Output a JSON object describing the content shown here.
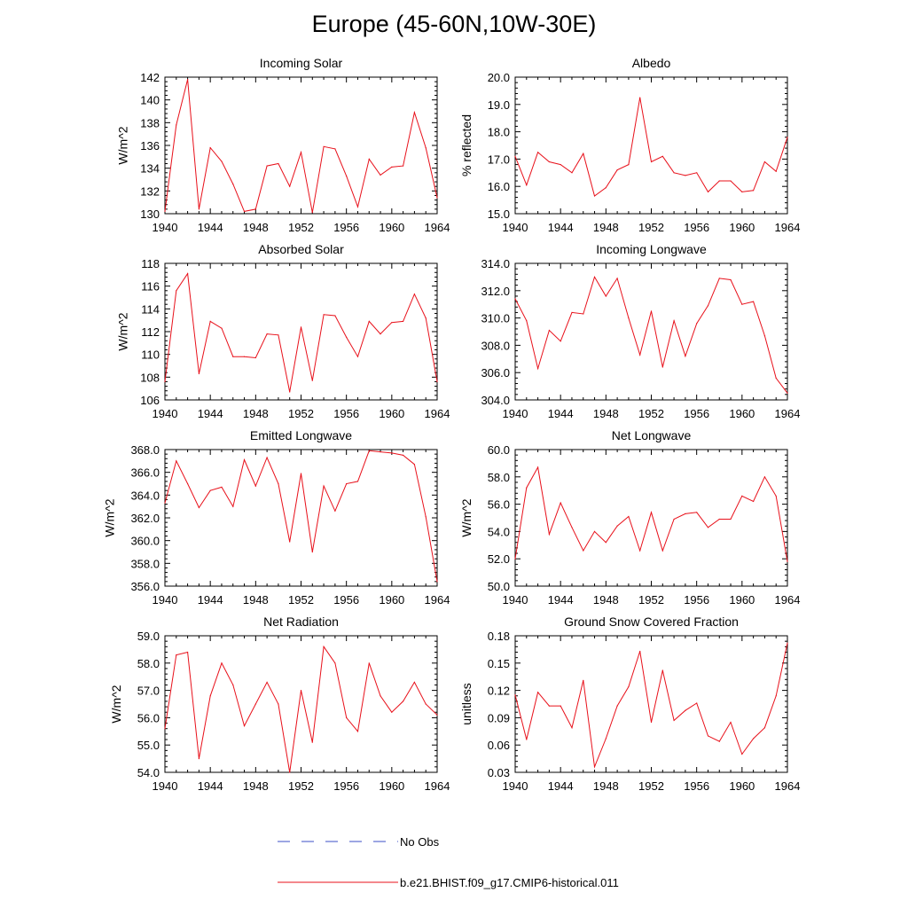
{
  "title": "Europe (45-60N,10W-30E)",
  "colors": {
    "model_line": "#e8101a",
    "obs_line": "#3b4fc7",
    "axis": "#000000"
  },
  "legend": {
    "obs_label": "No Obs",
    "model_label": "b.e21.BHIST.f09_g17.CMIP6-historical.011"
  },
  "chart_data": [
    {
      "type": "line",
      "title": "Incoming Solar",
      "ylabel": "W/m^2",
      "xlim": [
        1940,
        1964
      ],
      "ylim": [
        130,
        142
      ],
      "yticks": [
        130,
        132,
        134,
        136,
        138,
        140,
        142
      ],
      "ytick_labels": [
        "130",
        "132",
        "134",
        "136",
        "138",
        "140",
        "142"
      ],
      "xticks": [
        1940,
        1944,
        1948,
        1952,
        1956,
        1960,
        1964
      ],
      "xtick_labels": [
        "1940",
        "1944",
        "1948",
        "1952",
        "1956",
        "1960",
        "1964"
      ],
      "series": [
        {
          "x": [
            1940,
            1941,
            1942,
            1943,
            1944,
            1945,
            1946,
            1947,
            1948,
            1949,
            1950,
            1951,
            1952,
            1953,
            1954,
            1955,
            1956,
            1957,
            1958,
            1959,
            1960,
            1961,
            1962,
            1963,
            1964
          ],
          "y": [
            130.2,
            137.8,
            141.8,
            130.4,
            135.8,
            134.6,
            132.6,
            130.2,
            130.4,
            134.2,
            134.4,
            132.4,
            135.4,
            130.1,
            135.9,
            135.7,
            133.3,
            130.6,
            134.8,
            133.4,
            134.1,
            134.2,
            138.9,
            135.8,
            131.4
          ]
        }
      ]
    },
    {
      "type": "line",
      "title": "Albedo",
      "ylabel": "% reflected",
      "xlim": [
        1940,
        1964
      ],
      "ylim": [
        15,
        20
      ],
      "yticks": [
        15,
        16,
        17,
        18,
        19,
        20
      ],
      "ytick_labels": [
        "15.0",
        "16.0",
        "17.0",
        "18.0",
        "19.0",
        "20.0"
      ],
      "xticks": [
        1940,
        1944,
        1948,
        1952,
        1956,
        1960,
        1964
      ],
      "xtick_labels": [
        "1940",
        "1944",
        "1948",
        "1952",
        "1956",
        "1960",
        "1964"
      ],
      "series": [
        {
          "x": [
            1940,
            1941,
            1942,
            1943,
            1944,
            1945,
            1946,
            1947,
            1948,
            1949,
            1950,
            1951,
            1952,
            1953,
            1954,
            1955,
            1956,
            1957,
            1958,
            1959,
            1960,
            1961,
            1962,
            1963,
            1964
          ],
          "y": [
            17.1,
            16.05,
            17.25,
            16.9,
            16.8,
            16.5,
            17.2,
            15.65,
            15.95,
            16.6,
            16.8,
            19.25,
            16.9,
            17.1,
            16.5,
            16.4,
            16.5,
            15.8,
            16.2,
            16.2,
            15.8,
            15.85,
            16.9,
            16.55,
            17.8
          ]
        }
      ]
    },
    {
      "type": "line",
      "title": "Absorbed Solar",
      "ylabel": "W/m^2",
      "xlim": [
        1940,
        1964
      ],
      "ylim": [
        106,
        118
      ],
      "yticks": [
        106,
        108,
        110,
        112,
        114,
        116,
        118
      ],
      "ytick_labels": [
        "106",
        "108",
        "110",
        "112",
        "114",
        "116",
        "118"
      ],
      "xticks": [
        1940,
        1944,
        1948,
        1952,
        1956,
        1960,
        1964
      ],
      "xtick_labels": [
        "1940",
        "1944",
        "1948",
        "1952",
        "1956",
        "1960",
        "1964"
      ],
      "series": [
        {
          "x": [
            1940,
            1941,
            1942,
            1943,
            1944,
            1945,
            1946,
            1947,
            1948,
            1949,
            1950,
            1951,
            1952,
            1953,
            1954,
            1955,
            1956,
            1957,
            1958,
            1959,
            1960,
            1961,
            1962,
            1963,
            1964
          ],
          "y": [
            107.6,
            115.6,
            117.1,
            108.3,
            112.9,
            112.3,
            109.8,
            109.8,
            109.7,
            111.8,
            111.7,
            106.7,
            112.4,
            107.7,
            113.5,
            113.4,
            111.5,
            109.8,
            112.9,
            111.8,
            112.8,
            112.9,
            115.3,
            113.2,
            107.6
          ]
        }
      ]
    },
    {
      "type": "line",
      "title": "Incoming Longwave",
      "ylabel": "",
      "xlim": [
        1940,
        1964
      ],
      "ylim": [
        304,
        314
      ],
      "yticks": [
        304,
        306,
        308,
        310,
        312,
        314
      ],
      "ytick_labels": [
        "304.0",
        "306.0",
        "308.0",
        "310.0",
        "312.0",
        "314.0"
      ],
      "xticks": [
        1940,
        1944,
        1948,
        1952,
        1956,
        1960,
        1964
      ],
      "xtick_labels": [
        "1940",
        "1944",
        "1948",
        "1952",
        "1956",
        "1960",
        "1964"
      ],
      "series": [
        {
          "x": [
            1940,
            1941,
            1942,
            1943,
            1944,
            1945,
            1946,
            1947,
            1948,
            1949,
            1950,
            1951,
            1952,
            1953,
            1954,
            1955,
            1956,
            1957,
            1958,
            1959,
            1960,
            1961,
            1962,
            1963,
            1964
          ],
          "y": [
            311.4,
            309.8,
            306.3,
            309.1,
            308.3,
            310.4,
            310.3,
            313.0,
            311.6,
            312.9,
            310.0,
            307.3,
            310.5,
            306.4,
            309.8,
            307.2,
            309.6,
            310.9,
            312.9,
            312.8,
            311.0,
            311.2,
            308.7,
            305.6,
            304.5
          ]
        }
      ]
    },
    {
      "type": "line",
      "title": "Emitted Longwave",
      "ylabel": "W/m^2",
      "xlim": [
        1940,
        1964
      ],
      "ylim": [
        356,
        368
      ],
      "yticks": [
        356,
        358,
        360,
        362,
        364,
        366,
        368
      ],
      "ytick_labels": [
        "356.0",
        "358.0",
        "360.0",
        "362.0",
        "364.0",
        "366.0",
        "368.0"
      ],
      "xticks": [
        1940,
        1944,
        1948,
        1952,
        1956,
        1960,
        1964
      ],
      "xtick_labels": [
        "1940",
        "1944",
        "1948",
        "1952",
        "1956",
        "1960",
        "1964"
      ],
      "series": [
        {
          "x": [
            1940,
            1941,
            1942,
            1943,
            1944,
            1945,
            1946,
            1947,
            1948,
            1949,
            1950,
            1951,
            1952,
            1953,
            1954,
            1955,
            1956,
            1957,
            1958,
            1959,
            1960,
            1961,
            1962,
            1963,
            1964
          ],
          "y": [
            363.3,
            367.0,
            365.0,
            362.9,
            364.4,
            364.7,
            363.0,
            367.1,
            364.8,
            367.3,
            365.0,
            359.9,
            365.9,
            359.0,
            364.8,
            362.6,
            365.0,
            365.2,
            367.9,
            367.8,
            367.7,
            367.5,
            366.7,
            362.1,
            356.4
          ]
        }
      ]
    },
    {
      "type": "line",
      "title": "Net Longwave",
      "ylabel": "W/m^2",
      "xlim": [
        1940,
        1964
      ],
      "ylim": [
        50,
        60
      ],
      "yticks": [
        50,
        52,
        54,
        56,
        58,
        60
      ],
      "ytick_labels": [
        "50.0",
        "52.0",
        "54.0",
        "56.0",
        "58.0",
        "60.0"
      ],
      "xticks": [
        1940,
        1944,
        1948,
        1952,
        1956,
        1960,
        1964
      ],
      "xtick_labels": [
        "1940",
        "1944",
        "1948",
        "1952",
        "1956",
        "1960",
        "1964"
      ],
      "series": [
        {
          "x": [
            1940,
            1941,
            1942,
            1943,
            1944,
            1945,
            1946,
            1947,
            1948,
            1949,
            1950,
            1951,
            1952,
            1953,
            1954,
            1955,
            1956,
            1957,
            1958,
            1959,
            1960,
            1961,
            1962,
            1963,
            1964
          ],
          "y": [
            52.0,
            57.2,
            58.7,
            53.8,
            56.1,
            54.3,
            52.6,
            54.0,
            53.2,
            54.4,
            55.1,
            52.6,
            55.4,
            52.6,
            54.9,
            55.3,
            55.4,
            54.3,
            54.9,
            54.9,
            56.6,
            56.2,
            58.0,
            56.6,
            51.8
          ]
        }
      ]
    },
    {
      "type": "line",
      "title": "Net Radiation",
      "ylabel": "W/m^2",
      "xlim": [
        1940,
        1964
      ],
      "ylim": [
        54,
        59
      ],
      "yticks": [
        54,
        55,
        56,
        57,
        58,
        59
      ],
      "ytick_labels": [
        "54.0",
        "55.0",
        "56.0",
        "57.0",
        "58.0",
        "59.0"
      ],
      "xticks": [
        1940,
        1944,
        1948,
        1952,
        1956,
        1960,
        1964
      ],
      "xtick_labels": [
        "1940",
        "1944",
        "1948",
        "1952",
        "1956",
        "1960",
        "1964"
      ],
      "series": [
        {
          "x": [
            1940,
            1941,
            1942,
            1943,
            1944,
            1945,
            1946,
            1947,
            1948,
            1949,
            1950,
            1951,
            1952,
            1953,
            1954,
            1955,
            1956,
            1957,
            1958,
            1959,
            1960,
            1961,
            1962,
            1963,
            1964
          ],
          "y": [
            55.6,
            58.3,
            58.4,
            54.5,
            56.8,
            58.0,
            57.2,
            55.7,
            56.5,
            57.3,
            56.5,
            54.0,
            57.0,
            55.1,
            58.6,
            58.0,
            56.0,
            55.5,
            58.0,
            56.8,
            56.2,
            56.6,
            57.3,
            56.5,
            56.1
          ]
        }
      ]
    },
    {
      "type": "line",
      "title": "Ground Snow Covered Fraction",
      "ylabel": "unitless",
      "xlim": [
        1940,
        1964
      ],
      "ylim": [
        0.03,
        0.18
      ],
      "yticks": [
        0.03,
        0.06,
        0.09,
        0.12,
        0.15,
        0.18
      ],
      "ytick_labels": [
        "0.03",
        "0.06",
        "0.09",
        "0.12",
        "0.15",
        "0.18"
      ],
      "xticks": [
        1940,
        1944,
        1948,
        1952,
        1956,
        1960,
        1964
      ],
      "xtick_labels": [
        "1940",
        "1944",
        "1948",
        "1952",
        "1956",
        "1960",
        "1964"
      ],
      "series": [
        {
          "x": [
            1940,
            1941,
            1942,
            1943,
            1944,
            1945,
            1946,
            1947,
            1948,
            1949,
            1950,
            1951,
            1952,
            1953,
            1954,
            1955,
            1956,
            1957,
            1958,
            1959,
            1960,
            1961,
            1962,
            1963,
            1964
          ],
          "y": [
            0.115,
            0.066,
            0.118,
            0.103,
            0.103,
            0.079,
            0.131,
            0.036,
            0.067,
            0.103,
            0.124,
            0.163,
            0.085,
            0.142,
            0.087,
            0.098,
            0.106,
            0.07,
            0.064,
            0.085,
            0.05,
            0.067,
            0.079,
            0.114,
            0.172
          ]
        }
      ]
    }
  ]
}
